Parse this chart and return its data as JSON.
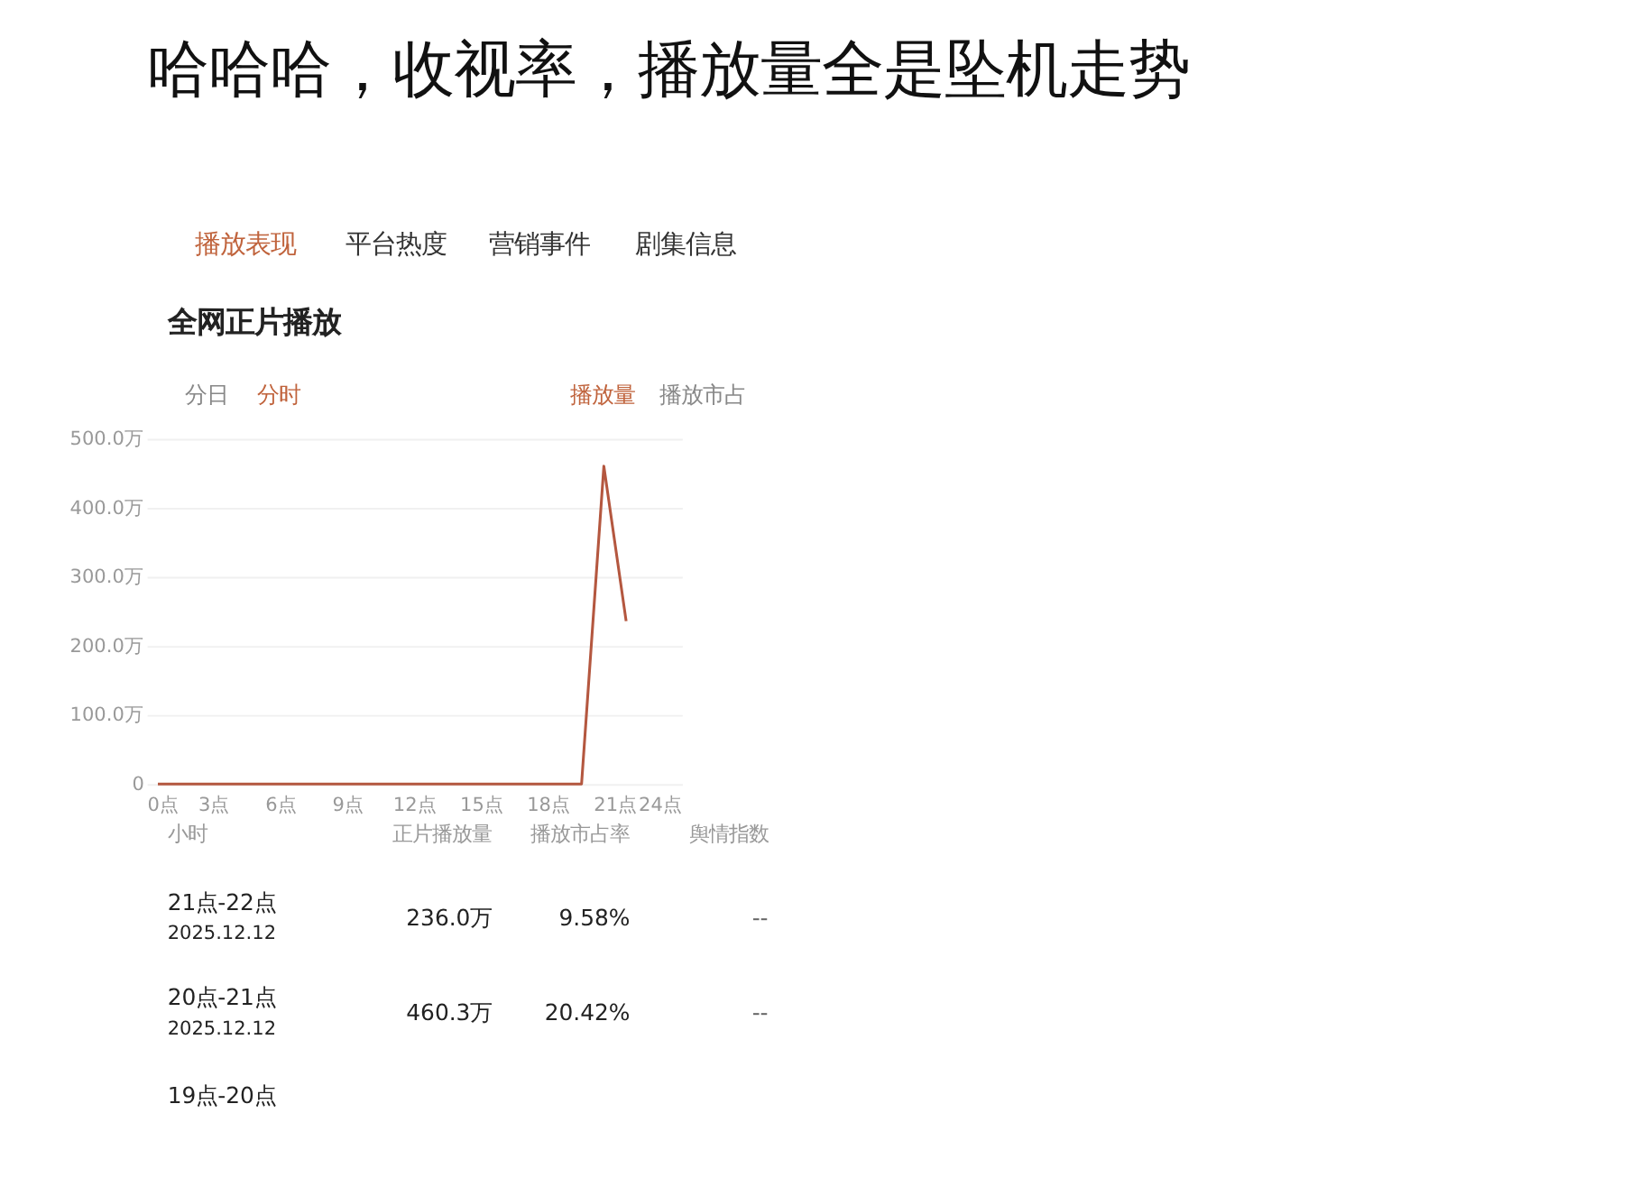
{
  "chart_data": {
    "type": "line",
    "title": "哈哈哈，收视率，播放量全是坠机走势",
    "subtitle": "全网正片播放",
    "x": [
      0.5,
      1.5,
      2.5,
      3.5,
      4.5,
      5.5,
      6.5,
      7.5,
      8.5,
      9.5,
      10.5,
      11.5,
      12.5,
      13.5,
      14.5,
      15.5,
      16.5,
      17.5,
      18.5,
      19.5,
      20.5,
      21.5
    ],
    "series": [
      {
        "color": "#b4573f",
        "values": [
          0,
          0,
          0,
          0,
          0,
          0,
          0,
          0,
          0,
          0,
          0,
          0,
          0,
          0,
          0,
          0,
          0,
          0,
          0,
          0,
          460.3,
          236.0
        ]
      }
    ],
    "xlim": [
      0,
      24
    ],
    "xticks": [
      {
        "value": 0,
        "label": "0点"
      },
      {
        "value": 3,
        "label": "3点"
      },
      {
        "value": 6,
        "label": "6点"
      },
      {
        "value": 9,
        "label": "9点"
      },
      {
        "value": 12,
        "label": "12点"
      },
      {
        "value": 15,
        "label": "15点"
      },
      {
        "value": 18,
        "label": "18点"
      },
      {
        "value": 21,
        "label": "21点"
      },
      {
        "value": 24,
        "label": "24点"
      }
    ],
    "ylim": [
      0,
      500
    ],
    "yticks": [
      0,
      {
        "value": 100,
        "label": "100.0万"
      },
      {
        "value": 200,
        "label": "200.0万"
      },
      {
        "value": 300,
        "label": "300.0万"
      },
      {
        "value": 400,
        "label": "400.0万"
      },
      {
        "value": 500,
        "label": "500.0万"
      }
    ],
    "grid": "y",
    "marker": "none",
    "line_style": "solid",
    "annotations": [
      "播放表现",
      "平台热度",
      "营销事件",
      "剧集信息",
      "分日",
      "分时",
      "播放量",
      "播放市占",
      "小时",
      "正片播放量",
      "播放市占率",
      "舆情指数",
      "21点-22点",
      "2025.12.12",
      "236.0万",
      "9.58%",
      "--",
      "20点-21点",
      "2025.12.12",
      "460.3万",
      "20.42%",
      "--",
      "19点-20点"
    ]
  }
}
